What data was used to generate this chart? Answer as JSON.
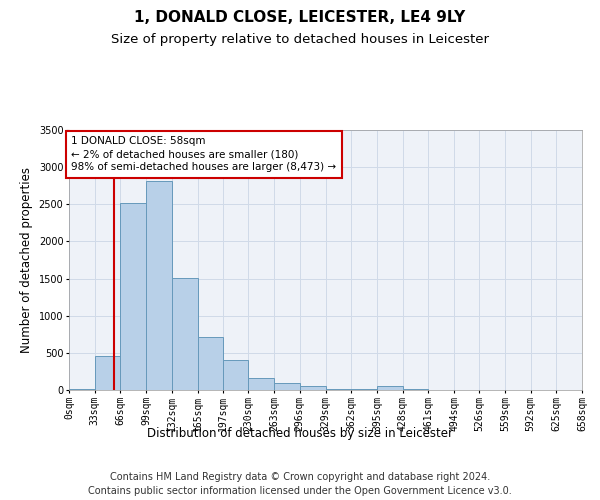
{
  "title": "1, DONALD CLOSE, LEICESTER, LE4 9LY",
  "subtitle": "Size of property relative to detached houses in Leicester",
  "xlabel": "Distribution of detached houses by size in Leicester",
  "ylabel": "Number of detached properties",
  "bar_color": "#b8d0e8",
  "bar_edge_color": "#6699bb",
  "grid_color": "#d0dae8",
  "background_color": "#eef2f8",
  "property_line_x": 58,
  "property_line_color": "#cc0000",
  "annotation_text": "1 DONALD CLOSE: 58sqm\n← 2% of detached houses are smaller (180)\n98% of semi-detached houses are larger (8,473) →",
  "annotation_box_color": "#cc0000",
  "bin_edges": [
    0,
    33,
    66,
    99,
    132,
    165,
    197,
    230,
    263,
    296,
    329,
    362,
    395,
    428,
    461,
    494,
    526,
    559,
    592,
    625,
    658
  ],
  "bin_counts": [
    20,
    460,
    2520,
    2820,
    1510,
    720,
    400,
    160,
    90,
    50,
    20,
    10,
    50,
    10,
    5,
    3,
    2,
    1,
    1,
    1
  ],
  "ylim": [
    0,
    3500
  ],
  "xlim": [
    0,
    658
  ],
  "tick_labels": [
    "0sqm",
    "33sqm",
    "66sqm",
    "99sqm",
    "132sqm",
    "165sqm",
    "197sqm",
    "230sqm",
    "263sqm",
    "296sqm",
    "329sqm",
    "362sqm",
    "395sqm",
    "428sqm",
    "461sqm",
    "494sqm",
    "526sqm",
    "559sqm",
    "592sqm",
    "625sqm",
    "658sqm"
  ],
  "footer_line1": "Contains HM Land Registry data © Crown copyright and database right 2024.",
  "footer_line2": "Contains public sector information licensed under the Open Government Licence v3.0.",
  "title_fontsize": 11,
  "subtitle_fontsize": 9.5,
  "axis_label_fontsize": 8.5,
  "tick_fontsize": 7,
  "footer_fontsize": 7,
  "annotation_fontsize": 7.5
}
